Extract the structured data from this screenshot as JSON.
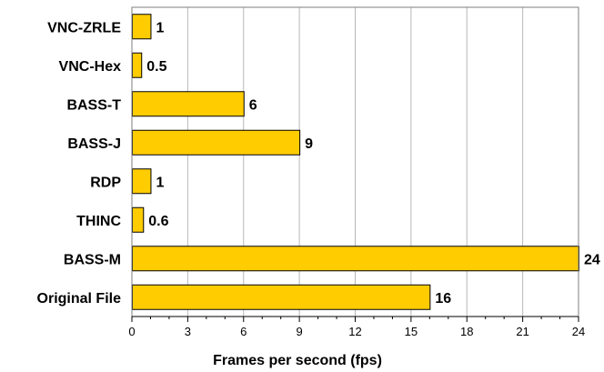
{
  "chart_data": {
    "type": "bar",
    "orientation": "horizontal",
    "categories": [
      "VNC-ZRLE",
      "VNC-Hex",
      "BASS-T",
      "BASS-J",
      "RDP",
      "THINC",
      "BASS-M",
      "Original File"
    ],
    "values": [
      1,
      0.5,
      6,
      9,
      1,
      0.6,
      24,
      16
    ],
    "value_labels": [
      "1",
      "0.5",
      "6",
      "9",
      "1",
      "0.6",
      "24",
      "16"
    ],
    "title": "",
    "xlabel": "Frames per second (fps)",
    "ylabel": "",
    "xlim": [
      0,
      24
    ],
    "x_ticks": [
      0,
      3,
      6,
      9,
      12,
      15,
      18,
      21,
      24
    ],
    "grid": "vertical",
    "bar_color": "#ffcc00",
    "bar_edge_color": "#000000",
    "grid_color": "#b8b8b8"
  }
}
